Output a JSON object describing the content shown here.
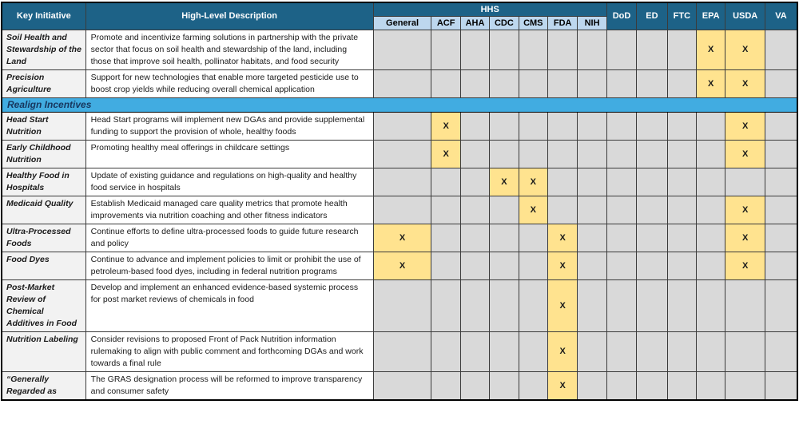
{
  "table": {
    "columns": {
      "initiative": "Key Initiative",
      "description": "High-Level Description",
      "hhs_group": "HHS",
      "agencies": [
        "General",
        "ACF",
        "AHA",
        "CDC",
        "CMS",
        "FDA",
        "NIH",
        "DoD",
        "ED",
        "FTC",
        "EPA",
        "USDA",
        "VA"
      ]
    },
    "mark": "X",
    "rows": [
      {
        "initiative": "Soil Health and Stewardship of the Land",
        "description": "Promote and incentivize farming solutions in partnership with the private sector that focus on soil health and stewardship of the land, including those that improve soil health, pollinator habitats, and food security",
        "marks": [
          "EPA",
          "USDA"
        ]
      },
      {
        "initiative": "Precision Agriculture",
        "description": "Support for new technologies that enable more targeted pesticide use to boost crop yields while reducing overall chemical application",
        "marks": [
          "EPA",
          "USDA"
        ]
      },
      {
        "section": "Realign Incentives"
      },
      {
        "initiative": "Head Start Nutrition",
        "description": "Head Start programs will implement new DGAs and provide supplemental funding to support the provision of whole, healthy foods",
        "marks": [
          "ACF",
          "USDA"
        ]
      },
      {
        "initiative": "Early Childhood Nutrition",
        "description": "Promoting healthy meal offerings in childcare settings",
        "marks": [
          "ACF",
          "USDA"
        ]
      },
      {
        "initiative": "Healthy Food in Hospitals",
        "description": "Update of existing guidance and regulations on high-quality and healthy food service in hospitals",
        "marks": [
          "CDC",
          "CMS"
        ]
      },
      {
        "initiative": "Medicaid Quality",
        "description": "Establish Medicaid managed care quality metrics that promote health improvements via nutrition coaching and other fitness indicators",
        "marks": [
          "CMS",
          "USDA"
        ]
      },
      {
        "initiative": "Ultra-Processed Foods",
        "description": "Continue efforts to define ultra-processed foods to guide future research and policy",
        "marks": [
          "General",
          "FDA",
          "USDA"
        ]
      },
      {
        "initiative": "Food Dyes",
        "description": "Continue to advance and implement policies to limit or prohibit the use of petroleum-based food dyes, including in federal nutrition programs",
        "marks": [
          "General",
          "FDA",
          "USDA"
        ]
      },
      {
        "initiative": "Post-Market Review of Chemical Additives in Food",
        "description": "Develop and implement an enhanced evidence-based systemic process for post market reviews of chemicals in food",
        "marks": [
          "FDA"
        ]
      },
      {
        "initiative": "Nutrition Labeling",
        "description": "Consider revisions to proposed Front of Pack Nutrition information rulemaking to align with public comment and forthcoming DGAs and work towards a final rule",
        "marks": [
          "FDA"
        ]
      },
      {
        "initiative": "“Generally Regarded as",
        "description": "The GRAS designation process will be reformed to improve transparency and consumer safety",
        "marks": [
          "FDA"
        ]
      }
    ]
  },
  "colors": {
    "header_bg": "#1D6287",
    "header_text": "#FFFFFF",
    "subheader_bg": "#BDD7EE",
    "section_bg": "#41ACE1",
    "section_text": "#17365D",
    "mark_bg": "#FFE38F",
    "empty_cell_bg": "#D9D9D9",
    "initiative_col_bg": "#F2F2F2"
  }
}
